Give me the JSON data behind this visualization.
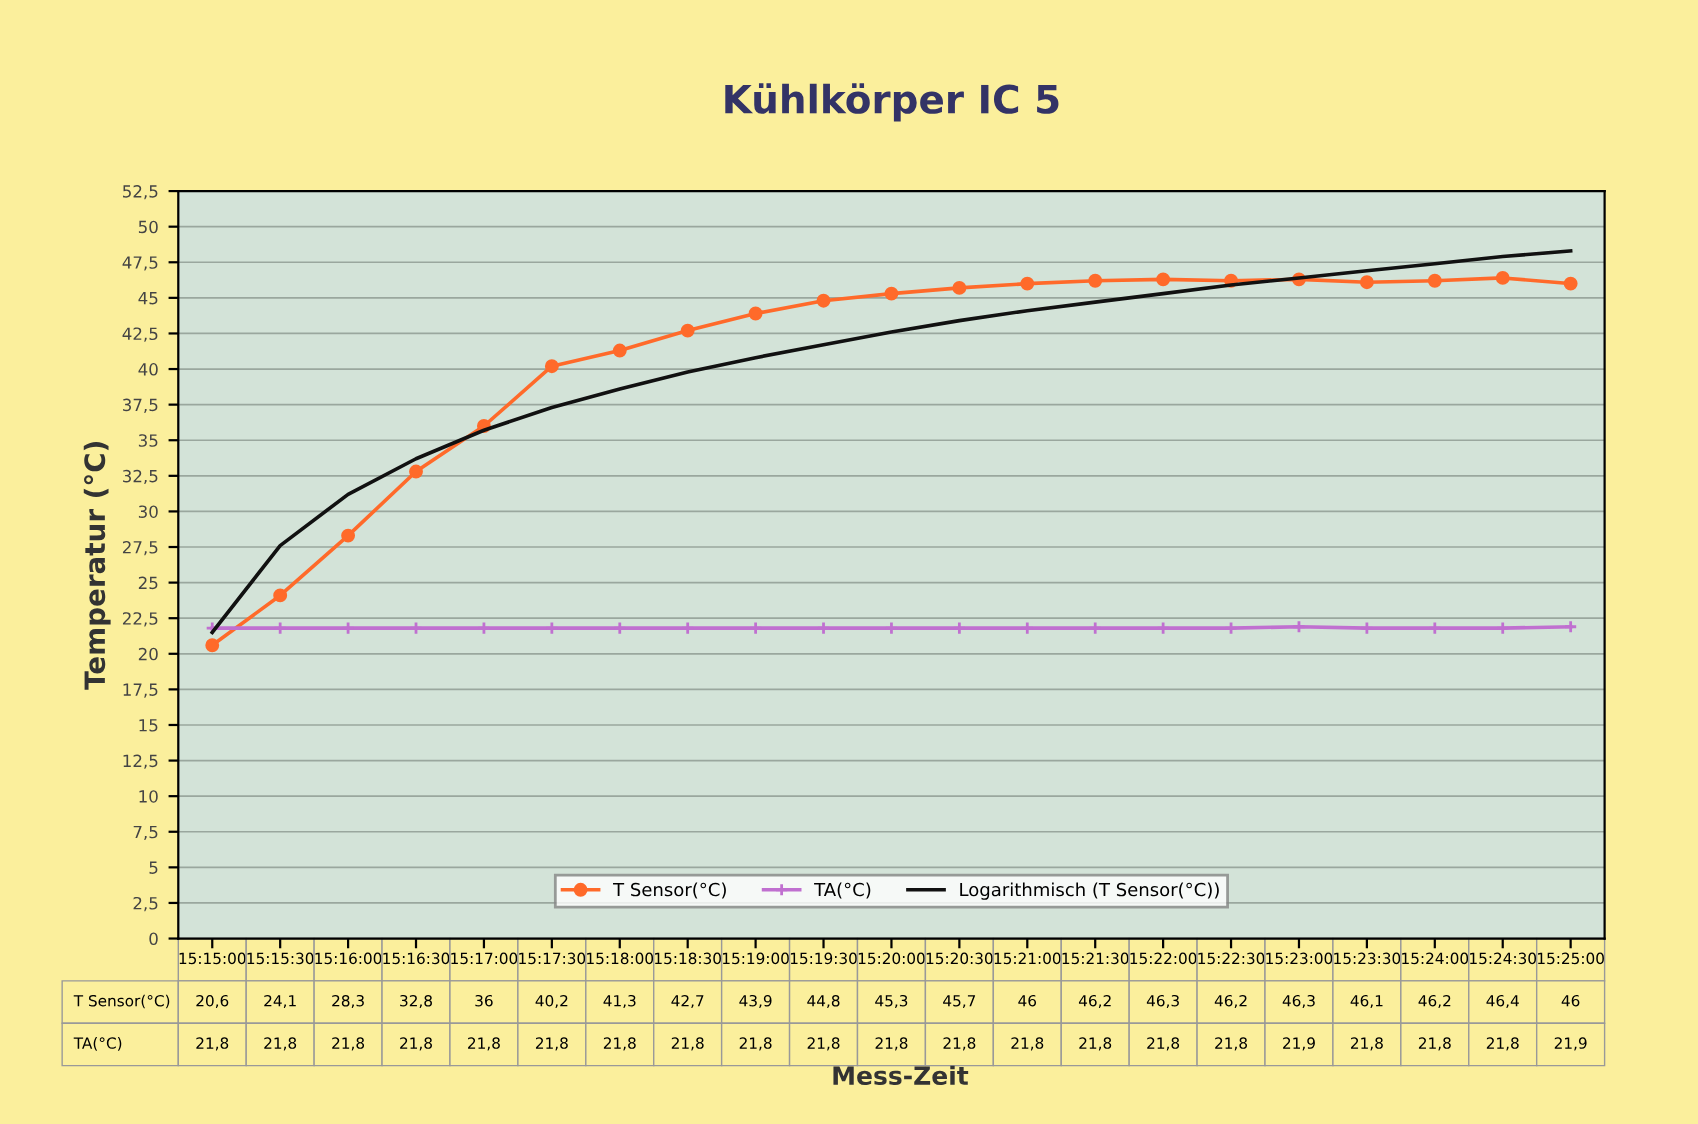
{
  "chart_data": {
    "type": "line",
    "title": "Kühlkörper IC 5",
    "xlabel": "Mess-Zeit",
    "ylabel": "Temperatur (°C)",
    "categories": [
      "15:15:00",
      "15:15:30",
      "15:16:00",
      "15:16:30",
      "15:17:00",
      "15:17:30",
      "15:18:00",
      "15:18:30",
      "15:19:00",
      "15:19:30",
      "15:20:00",
      "15:20:30",
      "15:21:00",
      "15:21:30",
      "15:22:00",
      "15:22:30",
      "15:23:00",
      "15:23:30",
      "15:24:00",
      "15:24:30",
      "15:25:00"
    ],
    "series": [
      {
        "name": "T Sensor(°C)",
        "color": "#ff6a2a",
        "marker": "circle",
        "values": [
          20.6,
          24.1,
          28.3,
          32.8,
          36,
          40.2,
          41.3,
          42.7,
          43.9,
          44.8,
          45.3,
          45.7,
          46,
          46.2,
          46.3,
          46.2,
          46.3,
          46.1,
          46.2,
          46.4,
          46
        ],
        "value_labels": [
          "20,6",
          "24,1",
          "28,3",
          "32,8",
          "36",
          "40,2",
          "41,3",
          "42,7",
          "43,9",
          "44,8",
          "45,3",
          "45,7",
          "46",
          "46,2",
          "46,3",
          "46,2",
          "46,3",
          "46,1",
          "46,2",
          "46,4",
          "46"
        ]
      },
      {
        "name": "TA(°C)",
        "color": "#c070d0",
        "marker": "cross",
        "values": [
          21.8,
          21.8,
          21.8,
          21.8,
          21.8,
          21.8,
          21.8,
          21.8,
          21.8,
          21.8,
          21.8,
          21.8,
          21.8,
          21.8,
          21.8,
          21.8,
          21.9,
          21.8,
          21.8,
          21.8,
          21.9
        ],
        "value_labels": [
          "21,8",
          "21,8",
          "21,8",
          "21,8",
          "21,8",
          "21,8",
          "21,8",
          "21,8",
          "21,8",
          "21,8",
          "21,8",
          "21,8",
          "21,8",
          "21,8",
          "21,8",
          "21,8",
          "21,9",
          "21,8",
          "21,8",
          "21,8",
          "21,9"
        ]
      },
      {
        "name": "Logarithmisch (T Sensor(°C))",
        "color": "#111111",
        "marker": "none",
        "values": [
          21.5,
          27.6,
          31.2,
          33.7,
          35.7,
          37.3,
          38.6,
          39.8,
          40.8,
          41.7,
          42.6,
          43.4,
          44.1,
          44.7,
          45.3,
          45.9,
          46.4,
          46.9,
          47.4,
          47.9,
          48.3
        ]
      }
    ],
    "ylim": [
      0,
      52.5
    ],
    "yticks": [
      0,
      {
        "value": 2.5,
        "label": "2,5"
      },
      5,
      {
        "value": 7.5,
        "label": "7,5"
      },
      10,
      {
        "value": 12.5,
        "label": "12,5"
      },
      15,
      {
        "value": 17.5,
        "label": "17,5"
      },
      20,
      {
        "value": 22.5,
        "label": "22,5"
      },
      25,
      {
        "value": 27.5,
        "label": "27,5"
      },
      30,
      {
        "value": 32.5,
        "label": "32,5"
      },
      35,
      {
        "value": 37.5,
        "label": "37,5"
      },
      40,
      {
        "value": 42.5,
        "label": "42,5"
      },
      45,
      {
        "value": 47.5,
        "label": "47,5"
      },
      50,
      {
        "value": 52.5,
        "label": "52,5"
      }
    ],
    "grid": "y",
    "legend": "bottom"
  }
}
